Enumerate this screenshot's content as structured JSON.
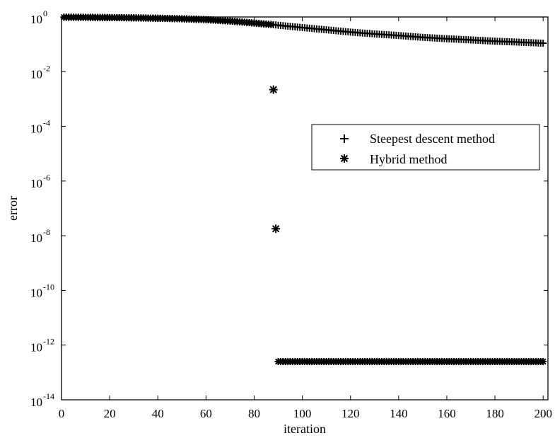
{
  "chart_data": {
    "type": "scatter",
    "xlabel": "iteration",
    "ylabel": "error",
    "xlim": [
      0,
      202
    ],
    "ylim_log10": [
      -14,
      0
    ],
    "y_scale": "log",
    "x_ticks": [
      "0",
      "20",
      "40",
      "60",
      "80",
      "100",
      "120",
      "140",
      "160",
      "180",
      "200"
    ],
    "y_ticks": [
      {
        "base": "10",
        "exp": "0"
      },
      {
        "base": "10",
        "exp": "-2"
      },
      {
        "base": "10",
        "exp": "-4"
      },
      {
        "base": "10",
        "exp": "-6"
      },
      {
        "base": "10",
        "exp": "-8"
      },
      {
        "base": "10",
        "exp": "-10"
      },
      {
        "base": "10",
        "exp": "-12"
      },
      {
        "base": "10",
        "exp": "-14"
      }
    ],
    "grid": false,
    "legend_position": "center-right",
    "series": [
      {
        "name": "Steepest descent method",
        "marker": "plus",
        "x": [
          1,
          10,
          20,
          30,
          40,
          50,
          60,
          70,
          80,
          88,
          90,
          100,
          110,
          120,
          130,
          140,
          150,
          160,
          170,
          180,
          190,
          200
        ],
        "y": [
          0.98,
          0.97,
          0.95,
          0.93,
          0.9,
          0.86,
          0.8,
          0.71,
          0.6,
          0.52,
          0.5,
          0.41,
          0.34,
          0.28,
          0.24,
          0.21,
          0.18,
          0.16,
          0.145,
          0.13,
          0.12,
          0.11
        ]
      },
      {
        "name": "Hybrid method",
        "marker": "asterisk",
        "x": [
          1,
          10,
          20,
          30,
          40,
          50,
          60,
          70,
          80,
          87,
          88,
          89,
          90,
          100,
          110,
          120,
          130,
          140,
          150,
          160,
          170,
          180,
          190,
          200
        ],
        "y": [
          0.98,
          0.97,
          0.95,
          0.93,
          0.9,
          0.86,
          0.8,
          0.71,
          0.6,
          0.53,
          0.0022,
          1.8e-08,
          2.5e-13,
          2.5e-13,
          2.5e-13,
          2.5e-13,
          2.5e-13,
          2.5e-13,
          2.5e-13,
          2.5e-13,
          2.5e-13,
          2.5e-13,
          2.5e-13,
          2.5e-13
        ]
      }
    ]
  }
}
